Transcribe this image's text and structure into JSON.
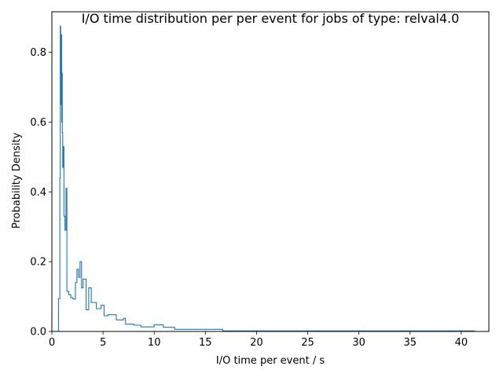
{
  "chart_data": {
    "type": "histogram-step",
    "title": "I/O time distribution per per event for jobs of type: relval4.0",
    "xlabel": "I/O time per event / s",
    "ylabel": "Probability Density",
    "xlim": [
      0,
      42.7
    ],
    "ylim": [
      0,
      0.916
    ],
    "xticks": [
      0,
      5,
      10,
      15,
      20,
      25,
      30,
      35,
      40
    ],
    "yticks": [
      0.0,
      0.2,
      0.4,
      0.6,
      0.8
    ],
    "grid": false,
    "line_color": "#1f77b4",
    "bins": [
      {
        "x0": 0.65,
        "x1": 0.78,
        "y": 0.094
      },
      {
        "x0": 0.78,
        "x1": 0.82,
        "y": 0.44
      },
      {
        "x0": 0.82,
        "x1": 0.86,
        "y": 0.875
      },
      {
        "x0": 0.86,
        "x1": 0.9,
        "y": 0.79
      },
      {
        "x0": 0.9,
        "x1": 0.93,
        "y": 0.65
      },
      {
        "x0": 0.93,
        "x1": 0.96,
        "y": 0.85
      },
      {
        "x0": 0.96,
        "x1": 0.99,
        "y": 0.6
      },
      {
        "x0": 0.99,
        "x1": 1.02,
        "y": 0.74
      },
      {
        "x0": 1.02,
        "x1": 1.06,
        "y": 0.57
      },
      {
        "x0": 1.06,
        "x1": 1.12,
        "y": 0.47
      },
      {
        "x0": 1.12,
        "x1": 1.18,
        "y": 0.53
      },
      {
        "x0": 1.18,
        "x1": 1.28,
        "y": 0.33
      },
      {
        "x0": 1.28,
        "x1": 1.38,
        "y": 0.29
      },
      {
        "x0": 1.38,
        "x1": 1.47,
        "y": 0.41
      },
      {
        "x0": 1.47,
        "x1": 1.65,
        "y": 0.115
      },
      {
        "x0": 1.65,
        "x1": 1.85,
        "y": 0.105
      },
      {
        "x0": 1.85,
        "x1": 2.05,
        "y": 0.097
      },
      {
        "x0": 2.05,
        "x1": 2.3,
        "y": 0.093
      },
      {
        "x0": 2.3,
        "x1": 2.45,
        "y": 0.14
      },
      {
        "x0": 2.45,
        "x1": 2.6,
        "y": 0.178
      },
      {
        "x0": 2.6,
        "x1": 2.75,
        "y": 0.155
      },
      {
        "x0": 2.75,
        "x1": 2.9,
        "y": 0.2
      },
      {
        "x0": 2.9,
        "x1": 3.05,
        "y": 0.125
      },
      {
        "x0": 3.05,
        "x1": 3.35,
        "y": 0.15
      },
      {
        "x0": 3.35,
        "x1": 3.6,
        "y": 0.062
      },
      {
        "x0": 3.6,
        "x1": 3.85,
        "y": 0.125
      },
      {
        "x0": 3.85,
        "x1": 4.35,
        "y": 0.083
      },
      {
        "x0": 4.35,
        "x1": 4.8,
        "y": 0.065
      },
      {
        "x0": 4.8,
        "x1": 5.1,
        "y": 0.075
      },
      {
        "x0": 5.1,
        "x1": 5.5,
        "y": 0.045
      },
      {
        "x0": 5.5,
        "x1": 6.3,
        "y": 0.048
      },
      {
        "x0": 6.3,
        "x1": 7.0,
        "y": 0.033
      },
      {
        "x0": 7.0,
        "x1": 7.2,
        "y": 0.038
      },
      {
        "x0": 7.2,
        "x1": 8.0,
        "y": 0.021
      },
      {
        "x0": 8.0,
        "x1": 8.7,
        "y": 0.018
      },
      {
        "x0": 8.7,
        "x1": 10.0,
        "y": 0.013
      },
      {
        "x0": 10.0,
        "x1": 10.9,
        "y": 0.019
      },
      {
        "x0": 10.9,
        "x1": 12.0,
        "y": 0.012
      },
      {
        "x0": 12.0,
        "x1": 16.7,
        "y": 0.006
      },
      {
        "x0": 16.7,
        "x1": 41.3,
        "y": 0.0015
      }
    ]
  }
}
